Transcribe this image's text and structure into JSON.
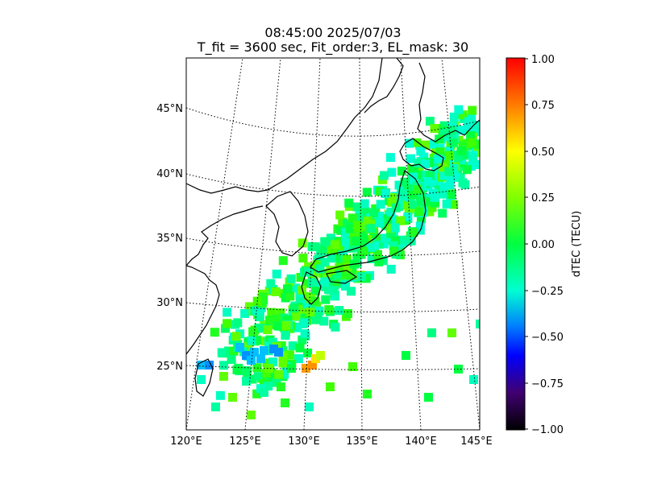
{
  "title": "08:45:00 2025/07/03",
  "subtitle": "T_fit = 3600 sec, Fit_order:3, EL_mask: 30",
  "map": {
    "lon_range": [
      120,
      145
    ],
    "lat_range": [
      20,
      49
    ],
    "lon_ticks": [
      "120°E",
      "125°E",
      "130°E",
      "135°E",
      "140°E",
      "145°E"
    ],
    "lat_ticks": [
      "25°N",
      "30°N",
      "35°N",
      "40°N",
      "45°N"
    ],
    "graticule": "dotted",
    "coastline_color": "#000000"
  },
  "colorbar": {
    "label": "dTEC (TECU)",
    "range": [
      -1.0,
      1.0
    ],
    "tick_labels": [
      "1.00",
      "0.75",
      "0.50",
      "0.25",
      "0.00",
      "−0.25",
      "−0.50",
      "−0.75",
      "−1.00"
    ],
    "colormap": "nipy_spectral-like",
    "stops": [
      "#ff0000",
      "#ff8000",
      "#ffff00",
      "#80ff00",
      "#00ff40",
      "#00ffd0",
      "#0080ff",
      "#0000ff",
      "#400080",
      "#000000"
    ]
  }
}
